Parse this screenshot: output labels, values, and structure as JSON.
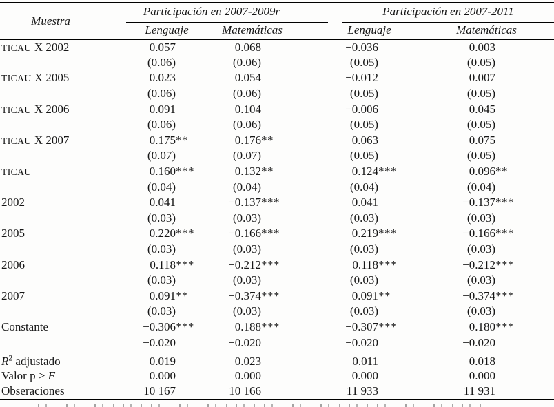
{
  "table": {
    "corner_label": "Muestra",
    "groups": [
      {
        "title": "Participación en 2007-2009r",
        "cols": [
          "Lenguaje",
          "Matemáticas"
        ]
      },
      {
        "title": "Participación en 2007-2011",
        "cols": [
          "Lenguaje",
          "Matemáticas"
        ]
      }
    ],
    "rows": [
      {
        "label": "TICAU X 2002",
        "values": [
          "0.057",
          "0.068",
          "−0.036",
          "0.003"
        ]
      },
      {
        "label": "",
        "values": [
          "(0.06)",
          "(0.06)",
          "(0.05)",
          "(0.05)"
        ]
      },
      {
        "label": "TICAU X 2005",
        "values": [
          "0.023",
          "0.054",
          "−0.012",
          "0.007"
        ]
      },
      {
        "label": "",
        "values": [
          "(0.06)",
          "(0.06)",
          "(0.05)",
          "(0.05)"
        ]
      },
      {
        "label": "TICAU X 2006",
        "values": [
          "0.091",
          "0.104",
          "−0.006",
          "0.045"
        ]
      },
      {
        "label": "",
        "values": [
          "(0.06)",
          "(0.06)",
          "(0.05)",
          "(0.05)"
        ]
      },
      {
        "label": "TICAU X 2007",
        "values": [
          "0.175**",
          "0.176**",
          "0.063",
          "0.075"
        ]
      },
      {
        "label": "",
        "values": [
          "(0.07)",
          "(0.07)",
          "(0.05)",
          "(0.05)"
        ]
      },
      {
        "label": "TICAU",
        "values": [
          "0.160***",
          "0.132**",
          "0.124***",
          "0.096**"
        ]
      },
      {
        "label": "",
        "values": [
          "(0.04)",
          "(0.04)",
          "(0.04)",
          "(0.04)"
        ]
      },
      {
        "label": "2002",
        "values": [
          "0.041",
          "−0.137***",
          "0.041",
          "−0.137***"
        ]
      },
      {
        "label": "",
        "values": [
          "(0.03)",
          "(0.03)",
          "(0.03)",
          "(0.03)"
        ]
      },
      {
        "label": "2005",
        "values": [
          "0.220***",
          "−0.166***",
          "0.219***",
          "−0.166***"
        ]
      },
      {
        "label": "",
        "values": [
          "(0.03)",
          "(0.03)",
          "(0.03)",
          "(0.03)"
        ]
      },
      {
        "label": "2006",
        "values": [
          "0.118***",
          "−0.212***",
          "0.118***",
          "−0.212***"
        ]
      },
      {
        "label": "",
        "values": [
          "(0.03)",
          "(0.03)",
          "(0.03)",
          "(0.03)"
        ]
      },
      {
        "label": "2007",
        "values": [
          "0.091**",
          "−0.374***",
          "0.091**",
          "−0.374***"
        ]
      },
      {
        "label": "",
        "values": [
          "(0.03)",
          "(0.03)",
          "(0.03)",
          "(0.03)"
        ]
      },
      {
        "label": "Constante",
        "values": [
          "−0.306***",
          "0.188***",
          "−0.307***",
          "0.180***"
        ]
      },
      {
        "label": "",
        "values": [
          "−0.020",
          "−0.020",
          "−0.020",
          "−0.020"
        ]
      }
    ],
    "stats_rows": [
      {
        "label": "R² adjustado",
        "values": [
          "0.019",
          "0.023",
          "0.011",
          "0.018"
        ]
      },
      {
        "label": "Valor p > F",
        "values": [
          "0.000",
          "0.000",
          "0.000",
          "0.000"
        ]
      },
      {
        "label": "Obseraciones",
        "values": [
          "10 167",
          "10 166",
          "11 933",
          "11 931"
        ]
      }
    ]
  }
}
